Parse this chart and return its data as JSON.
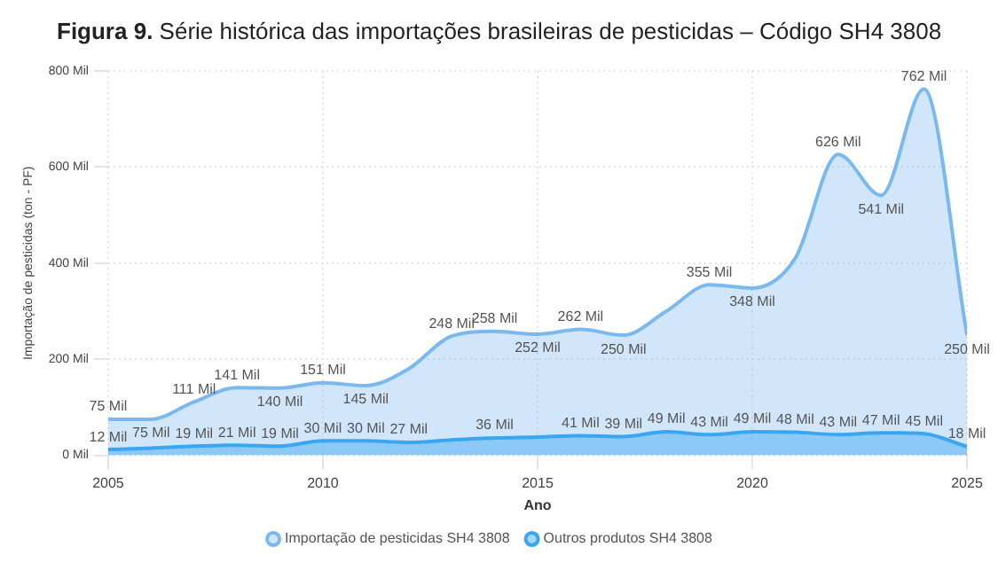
{
  "chart_data": {
    "type": "area",
    "title": "Figura 9. Série histórica das importações brasileiras de pesticidas – Código SH4 3808",
    "xlabel": "Ano",
    "ylabel": "Importação de pesticidas (ton - PF)",
    "x": [
      2005,
      2006,
      2007,
      2008,
      2009,
      2010,
      2011,
      2012,
      2013,
      2014,
      2015,
      2016,
      2017,
      2018,
      2019,
      2020,
      2021,
      2022,
      2023,
      2024,
      2025
    ],
    "series": [
      {
        "name": "Importação de pesticidas SH4 3808",
        "color": "#7ab8f0",
        "values": [
          75,
          75,
          111,
          141,
          140,
          151,
          145,
          180,
          248,
          258,
          252,
          262,
          250,
          300,
          355,
          348,
          410,
          626,
          541,
          762,
          250
        ],
        "value_labels": [
          "75 Mil",
          "75 Mil",
          "111 Mil",
          "141 Mil",
          "140 Mil",
          "151 Mil",
          "145 Mil",
          null,
          "248 Mil",
          "258 Mil",
          "252 Mil",
          "262 Mil",
          "250 Mil",
          null,
          "355 Mil",
          "348 Mil",
          null,
          "626 Mil",
          "541 Mil",
          "762 Mil",
          "250 Mil"
        ]
      },
      {
        "name": "Outros produtos SH4 3808",
        "color": "#3aa6f2",
        "values": [
          12,
          15,
          19,
          21,
          19,
          30,
          30,
          27,
          32,
          36,
          38,
          41,
          39,
          49,
          43,
          49,
          48,
          43,
          47,
          45,
          18
        ],
        "value_labels": [
          "12 Mil",
          null,
          "19 Mil",
          "21 Mil",
          "19 Mil",
          "30 Mil",
          "30 Mil",
          "27 Mil",
          null,
          "36 Mil",
          null,
          "41 Mil",
          "39 Mil",
          "49 Mil",
          "43 Mil",
          "49 Mil",
          "48 Mil",
          "43 Mil",
          "47 Mil",
          "45 Mil",
          "18 Mil"
        ]
      }
    ],
    "xlim": [
      2005,
      2025
    ],
    "xticks": [
      2005,
      2010,
      2015,
      2020,
      2025
    ],
    "ylim": [
      0,
      800
    ],
    "yticks": [
      {
        "value": 0,
        "label": "0 Mil"
      },
      {
        "value": 200,
        "label": "200 Mil"
      },
      {
        "value": 400,
        "label": "400 Mil"
      },
      {
        "value": 600,
        "label": "600 Mil"
      },
      {
        "value": 800,
        "label": "800 Mil"
      }
    ],
    "grid": true,
    "legend": "bottom"
  }
}
